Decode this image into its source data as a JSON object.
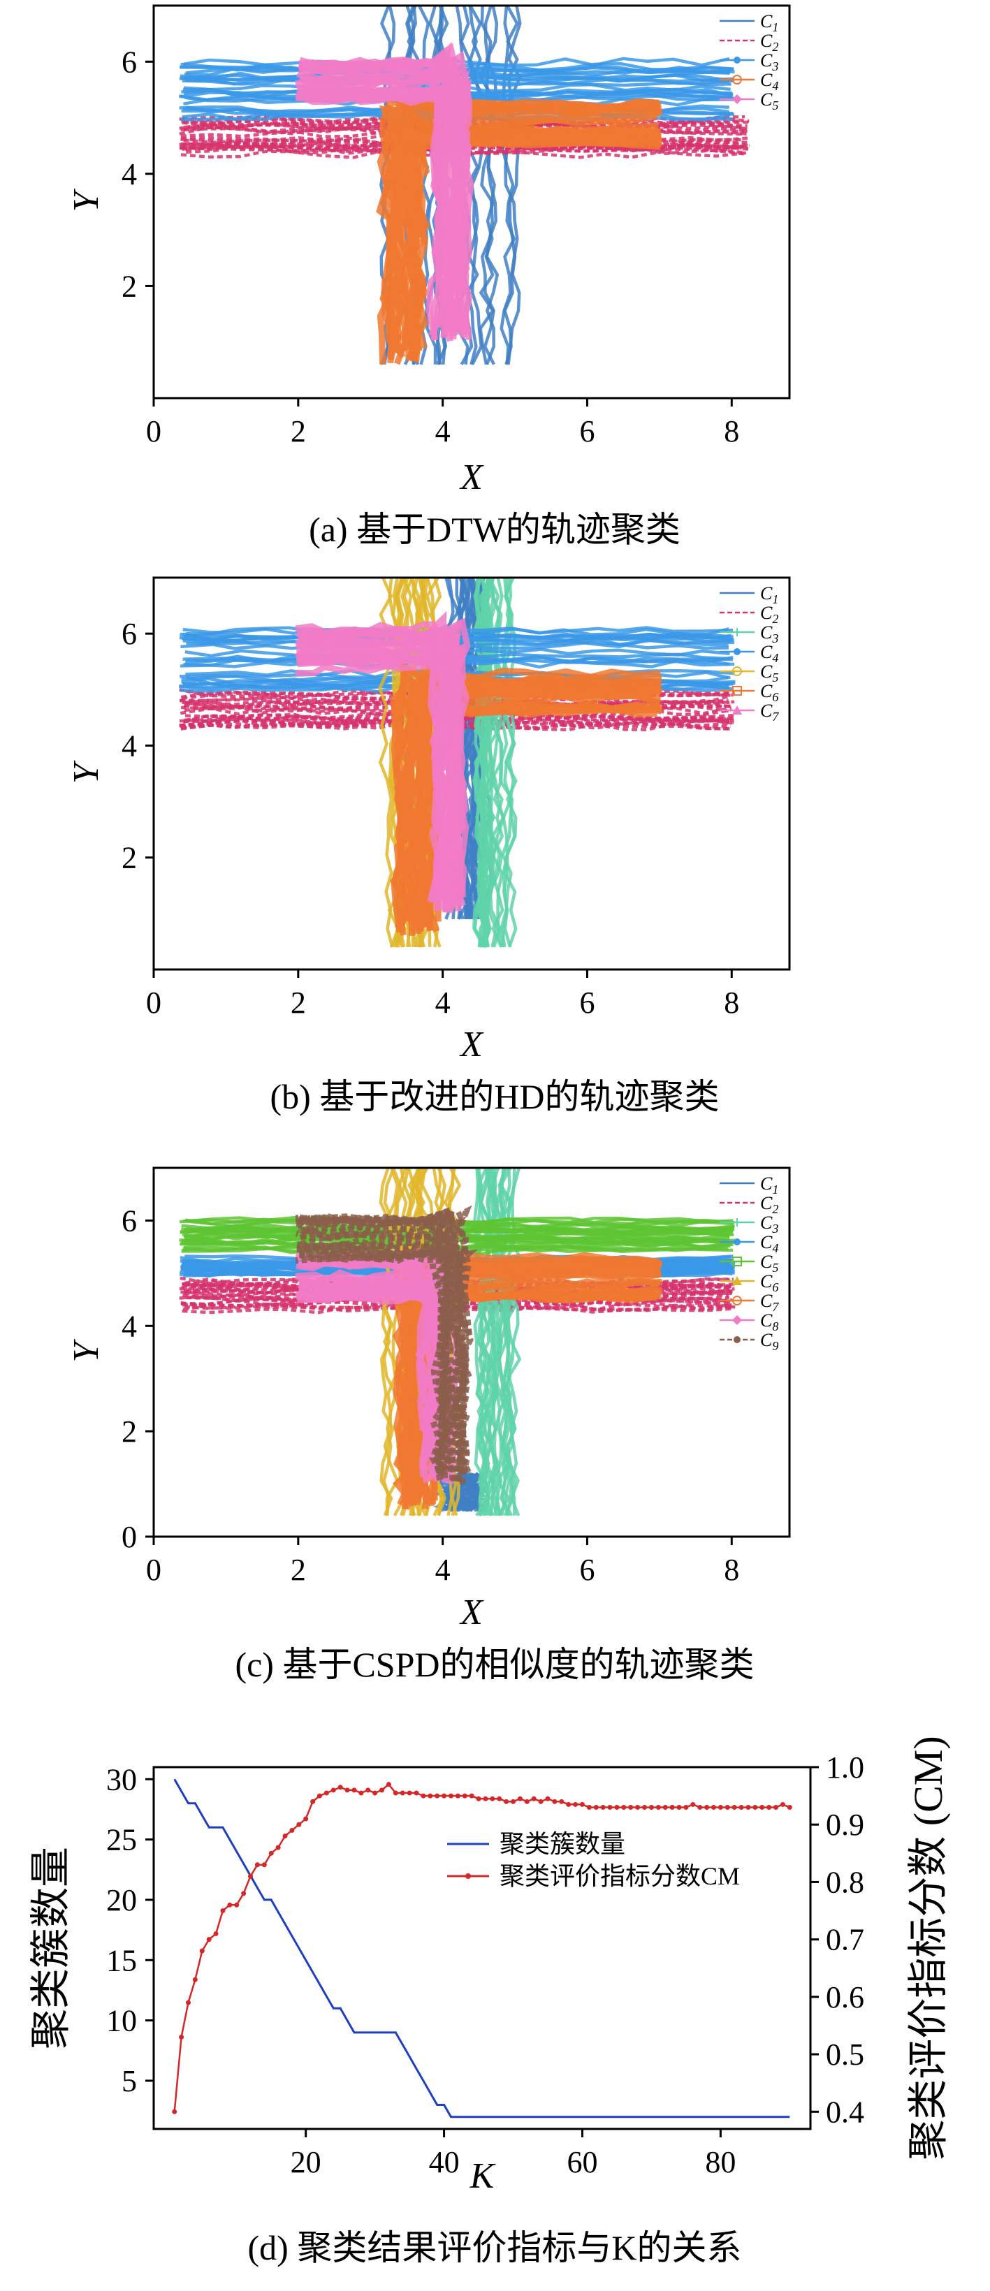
{
  "panels": [
    {
      "caption": "(a) 基于DTW的轨迹聚类",
      "xlabel": "X",
      "ylabel": "Y",
      "xticks": [
        "0",
        "2",
        "4",
        "6",
        "8"
      ],
      "yticks": [
        "2",
        "4",
        "6"
      ],
      "legend": [
        {
          "label": "C",
          "sub": "1",
          "color": "#3f7fc4",
          "style": "solid",
          "marker": "none"
        },
        {
          "label": "C",
          "sub": "2",
          "color": "#d6336c",
          "style": "dashed",
          "marker": "none"
        },
        {
          "label": "C",
          "sub": "3",
          "color": "#3a98e8",
          "style": "solid",
          "marker": "dot"
        },
        {
          "label": "C",
          "sub": "4",
          "color": "#f07830",
          "style": "solid",
          "marker": "ring"
        },
        {
          "label": "C",
          "sub": "5",
          "color": "#f27bc7",
          "style": "solid",
          "marker": "diamond"
        }
      ]
    },
    {
      "caption": "(b) 基于改进的HD的轨迹聚类",
      "xlabel": "X",
      "ylabel": "Y",
      "xticks": [
        "0",
        "2",
        "4",
        "6",
        "8"
      ],
      "yticks": [
        "2",
        "4",
        "6"
      ],
      "legend": [
        {
          "label": "C",
          "sub": "1",
          "color": "#3f7fc4",
          "style": "solid",
          "marker": "none"
        },
        {
          "label": "C",
          "sub": "2",
          "color": "#d6336c",
          "style": "dashed",
          "marker": "none"
        },
        {
          "label": "C",
          "sub": "3",
          "color": "#5fd3a8",
          "style": "solid",
          "marker": "plus"
        },
        {
          "label": "C",
          "sub": "4",
          "color": "#3a98e8",
          "style": "solid",
          "marker": "dot"
        },
        {
          "label": "C",
          "sub": "5",
          "color": "#e2b62a",
          "style": "solid",
          "marker": "ring"
        },
        {
          "label": "C",
          "sub": "6",
          "color": "#f07830",
          "style": "solid",
          "marker": "square"
        },
        {
          "label": "C",
          "sub": "7",
          "color": "#f27bc7",
          "style": "solid",
          "marker": "triangle"
        }
      ]
    },
    {
      "caption": "(c) 基于CSPD的相似度的轨迹聚类",
      "xlabel": "X",
      "ylabel": "Y",
      "xticks": [
        "0",
        "2",
        "4",
        "6",
        "8"
      ],
      "yticks": [
        "0",
        "2",
        "4",
        "6"
      ],
      "legend": [
        {
          "label": "C",
          "sub": "1",
          "color": "#3f7fc4",
          "style": "solid",
          "marker": "none"
        },
        {
          "label": "C",
          "sub": "2",
          "color": "#d6336c",
          "style": "dashed",
          "marker": "none"
        },
        {
          "label": "C",
          "sub": "3",
          "color": "#5fd3a8",
          "style": "solid",
          "marker": "plus"
        },
        {
          "label": "C",
          "sub": "4",
          "color": "#3a98e8",
          "style": "solid",
          "marker": "dot"
        },
        {
          "label": "C",
          "sub": "5",
          "color": "#5ec433",
          "style": "solid",
          "marker": "square"
        },
        {
          "label": "C",
          "sub": "6",
          "color": "#e2b62a",
          "style": "solid",
          "marker": "triangle"
        },
        {
          "label": "C",
          "sub": "7",
          "color": "#f07830",
          "style": "solid",
          "marker": "ring"
        },
        {
          "label": "C",
          "sub": "8",
          "color": "#f27bc7",
          "style": "solid",
          "marker": "diamond"
        },
        {
          "label": "C",
          "sub": "9",
          "color": "#8b5e4b",
          "style": "dashed",
          "marker": "dot"
        }
      ]
    },
    {
      "caption": "(d) 聚类结果评价指标与K的关系",
      "xlabel": "K",
      "ylabel_left": "聚类簇数量",
      "ylabel_right": "聚类评价指标分数 (CM)",
      "xticks": [
        "20",
        "40",
        "60",
        "80"
      ],
      "yticks_left": [
        "5",
        "10",
        "15",
        "20",
        "25",
        "30"
      ],
      "yticks_right": [
        "0.4",
        "0.5",
        "0.6",
        "0.7",
        "0.8",
        "0.9",
        "1.0"
      ],
      "legend": [
        {
          "label": "聚类簇数量",
          "color": "#1f3fbf"
        },
        {
          "label": "聚类评价指标分数CM",
          "color": "#d62728"
        }
      ]
    }
  ],
  "chart_data": [
    {
      "type": "line",
      "title": "(a) 基于DTW的轨迹聚类",
      "xlabel": "X",
      "ylabel": "Y",
      "xlim": [
        0,
        8.8
      ],
      "ylim": [
        0,
        7
      ],
      "series": [
        {
          "name": "C1",
          "color": "#3f7fc4",
          "kind": "vertical",
          "x_range": [
            3.2,
            5.0
          ],
          "y_range": [
            0.6,
            7.0
          ]
        },
        {
          "name": "C2",
          "color": "#d6336c",
          "kind": "horizontal",
          "x_range": [
            0.4,
            8.2
          ],
          "y_range": [
            4.3,
            5.0
          ]
        },
        {
          "name": "C3",
          "color": "#3a98e8",
          "kind": "horizontal",
          "x_range": [
            0.4,
            8.0
          ],
          "y_range": [
            5.0,
            6.1
          ]
        },
        {
          "name": "C4",
          "color": "#f07830",
          "kind": "corner",
          "x_range": [
            3.2,
            7.0
          ],
          "y_range": [
            0.6,
            5.3
          ]
        },
        {
          "name": "C5",
          "color": "#f27bc7",
          "kind": "corner",
          "x_range": [
            2.0,
            4.5
          ],
          "y_range": [
            1.0,
            6.1
          ]
        }
      ]
    },
    {
      "type": "line",
      "title": "(b) 基于改进的HD的轨迹聚类",
      "xlabel": "X",
      "ylabel": "Y",
      "xlim": [
        0,
        8.8
      ],
      "ylim": [
        0,
        7
      ],
      "series": [
        {
          "name": "C1",
          "color": "#3f7fc4",
          "kind": "vertical",
          "x_range": [
            4.0,
            4.6
          ],
          "y_range": [
            0.9,
            7.0
          ]
        },
        {
          "name": "C2",
          "color": "#d6336c",
          "kind": "horizontal",
          "x_range": [
            0.4,
            8.0
          ],
          "y_range": [
            4.3,
            5.0
          ]
        },
        {
          "name": "C3",
          "color": "#5fd3a8",
          "kind": "vertical",
          "x_range": [
            4.5,
            5.0
          ],
          "y_range": [
            0.4,
            7.0
          ]
        },
        {
          "name": "C4",
          "color": "#3a98e8",
          "kind": "horizontal",
          "x_range": [
            0.4,
            8.0
          ],
          "y_range": [
            5.0,
            6.1
          ]
        },
        {
          "name": "C5",
          "color": "#e2b62a",
          "kind": "vertical",
          "x_range": [
            3.2,
            3.9
          ],
          "y_range": [
            0.4,
            7.0
          ]
        },
        {
          "name": "C6",
          "color": "#f07830",
          "kind": "corner",
          "x_range": [
            3.4,
            7.0
          ],
          "y_range": [
            0.6,
            5.3
          ]
        },
        {
          "name": "C7",
          "color": "#f27bc7",
          "kind": "corner",
          "x_range": [
            2.0,
            4.5
          ],
          "y_range": [
            1.0,
            6.1
          ]
        }
      ]
    },
    {
      "type": "line",
      "title": "(c) 基于CSPD的相似度的轨迹聚类",
      "xlabel": "X",
      "ylabel": "Y",
      "xlim": [
        0,
        8.8
      ],
      "ylim": [
        0,
        7
      ],
      "series": [
        {
          "name": "C1",
          "color": "#3f7fc4",
          "kind": "vertical",
          "x_range": [
            4.0,
            4.5
          ],
          "y_range": [
            0.5,
            1.2
          ]
        },
        {
          "name": "C2",
          "color": "#d6336c",
          "kind": "horizontal",
          "x_range": [
            0.4,
            8.0
          ],
          "y_range": [
            4.3,
            4.9
          ]
        },
        {
          "name": "C3",
          "color": "#5fd3a8",
          "kind": "vertical",
          "x_range": [
            4.5,
            5.0
          ],
          "y_range": [
            0.4,
            7.0
          ]
        },
        {
          "name": "C4",
          "color": "#3a98e8",
          "kind": "horizontal",
          "x_range": [
            0.4,
            8.0
          ],
          "y_range": [
            5.0,
            5.3
          ]
        },
        {
          "name": "C5",
          "color": "#5ec433",
          "kind": "horizontal",
          "x_range": [
            0.4,
            8.0
          ],
          "y_range": [
            5.4,
            6.0
          ]
        },
        {
          "name": "C6",
          "color": "#e2b62a",
          "kind": "vertical",
          "x_range": [
            3.2,
            4.2
          ],
          "y_range": [
            0.4,
            7.0
          ]
        },
        {
          "name": "C7",
          "color": "#f07830",
          "kind": "corner",
          "x_range": [
            3.4,
            7.0
          ],
          "y_range": [
            0.5,
            5.3
          ]
        },
        {
          "name": "C8",
          "color": "#f27bc7",
          "kind": "corner",
          "x_range": [
            2.0,
            4.3
          ],
          "y_range": [
            1.0,
            5.3
          ]
        },
        {
          "name": "C9",
          "color": "#8b5e4b",
          "kind": "corner",
          "x_range": [
            2.0,
            4.5
          ],
          "y_range": [
            1.0,
            6.1
          ]
        }
      ]
    },
    {
      "type": "line",
      "title": "(d) 聚类结果评价指标与K的关系",
      "xlabel": "K",
      "ylabel": "聚类簇数量",
      "ylabel_right": "聚类评价指标分数 (CM)",
      "xlim": [
        -2,
        93
      ],
      "ylim": [
        1,
        31
      ],
      "ylim_right": [
        0.37,
        1.0
      ],
      "x": [
        1,
        2,
        3,
        4,
        5,
        6,
        7,
        8,
        9,
        10,
        11,
        12,
        13,
        14,
        15,
        16,
        17,
        18,
        19,
        20,
        21,
        22,
        23,
        24,
        25,
        26,
        27,
        28,
        29,
        30,
        31,
        32,
        33,
        34,
        35,
        36,
        37,
        38,
        39,
        40,
        41,
        42,
        43,
        44,
        45,
        46,
        47,
        48,
        49,
        50,
        51,
        52,
        53,
        54,
        55,
        56,
        57,
        58,
        59,
        60,
        61,
        62,
        63,
        64,
        65,
        66,
        67,
        68,
        69,
        70,
        71,
        72,
        73,
        74,
        75,
        76,
        77,
        78,
        79,
        80,
        81,
        82,
        83,
        84,
        85,
        86,
        87,
        88,
        89,
        90
      ],
      "series": [
        {
          "name": "聚类簇数量",
          "axis": "left",
          "color": "#1f3fbf",
          "values": [
            30,
            29,
            28,
            28,
            27,
            26,
            26,
            26,
            25,
            24,
            23,
            22,
            21,
            20,
            20,
            19,
            18,
            17,
            16,
            15,
            14,
            13,
            12,
            11,
            11,
            10,
            9,
            9,
            9,
            9,
            9,
            9,
            9,
            8,
            7,
            6,
            5,
            4,
            3,
            3,
            2,
            2,
            2,
            2,
            2,
            2,
            2,
            2,
            2,
            2,
            2,
            2,
            2,
            2,
            2,
            2,
            2,
            2,
            2,
            2,
            2,
            2,
            2,
            2,
            2,
            2,
            2,
            2,
            2,
            2,
            2,
            2,
            2,
            2,
            2,
            2,
            2,
            2,
            2,
            2,
            2,
            2,
            2,
            2,
            2,
            2,
            2,
            2,
            2,
            2
          ]
        },
        {
          "name": "聚类评价指标分数CM",
          "axis": "right",
          "color": "#d62728",
          "values": [
            0.4,
            0.53,
            0.59,
            0.63,
            0.68,
            0.7,
            0.71,
            0.75,
            0.76,
            0.76,
            0.78,
            0.81,
            0.83,
            0.83,
            0.85,
            0.86,
            0.88,
            0.89,
            0.9,
            0.91,
            0.94,
            0.95,
            0.955,
            0.96,
            0.965,
            0.96,
            0.96,
            0.955,
            0.96,
            0.955,
            0.96,
            0.97,
            0.955,
            0.955,
            0.955,
            0.955,
            0.95,
            0.95,
            0.95,
            0.95,
            0.95,
            0.95,
            0.95,
            0.95,
            0.945,
            0.945,
            0.945,
            0.945,
            0.94,
            0.94,
            0.945,
            0.94,
            0.945,
            0.94,
            0.945,
            0.94,
            0.94,
            0.935,
            0.935,
            0.935,
            0.93,
            0.93,
            0.93,
            0.93,
            0.93,
            0.93,
            0.93,
            0.93,
            0.93,
            0.93,
            0.93,
            0.93,
            0.93,
            0.93,
            0.93,
            0.935,
            0.93,
            0.93,
            0.93,
            0.93,
            0.93,
            0.93,
            0.93,
            0.93,
            0.93,
            0.93,
            0.93,
            0.93,
            0.935,
            0.93
          ]
        }
      ]
    }
  ]
}
